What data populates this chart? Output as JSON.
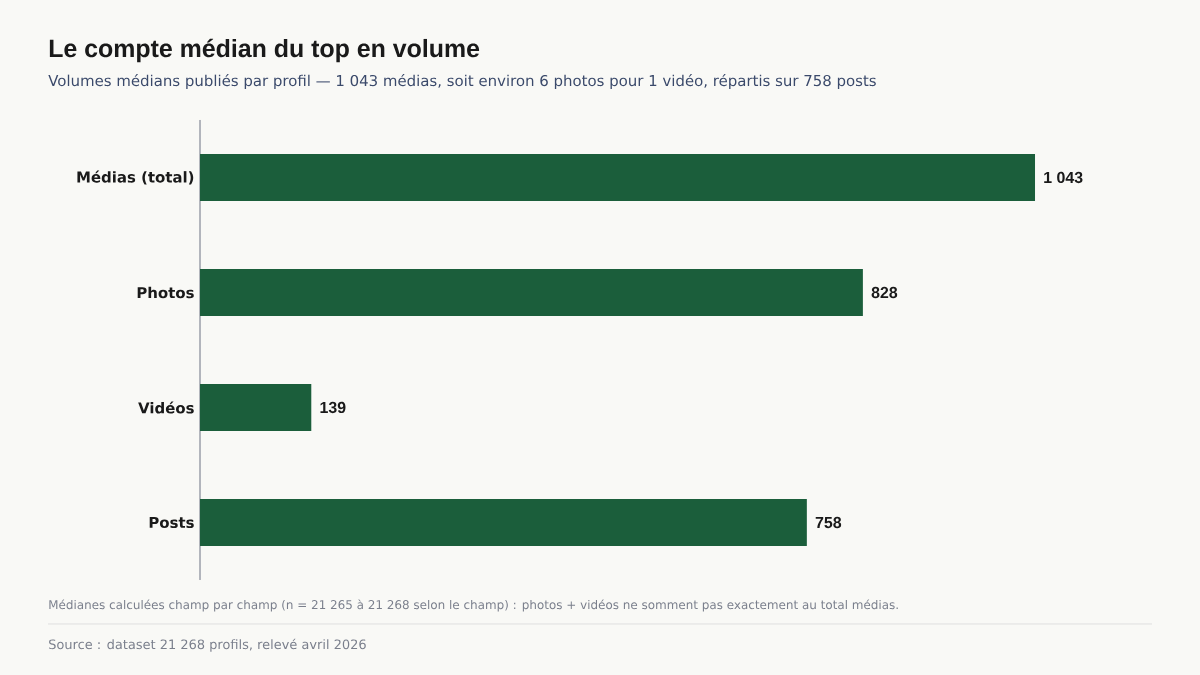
{
  "chart_data": {
    "type": "bar",
    "orientation": "horizontal",
    "title": "Le compte médian du top en volume",
    "subtitle": "Volumes médians publiés par profil — 1 043 médias, soit environ 6 photos pour 1 vidéo, répartis sur 758 posts",
    "categories": [
      "Médias (total)",
      "Photos",
      "Vidéos",
      "Posts"
    ],
    "values": [
      1043,
      828,
      139,
      758
    ],
    "value_labels": [
      "1 043",
      "828",
      "139",
      "758"
    ],
    "color": "#1b5e3b",
    "tick_labels": "y",
    "annotations": [
      "Médianes calculées champ par champ (n = 21 265 à 21 268 selon le champ) : photos + vidéos ne somment pas exactement au total médias.",
      "Source : dataset 21 268 profils, relevé avril 2026"
    ]
  }
}
